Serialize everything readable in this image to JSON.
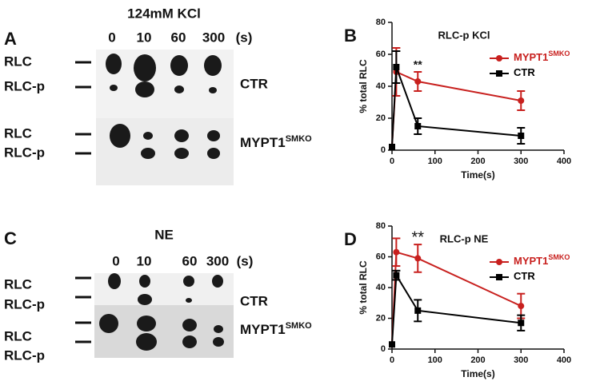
{
  "blots": [
    {
      "panel": "A",
      "title": "124mM KCl",
      "lanes": [
        "0",
        "10",
        "60",
        "300"
      ],
      "unit": "(s)",
      "rows": [
        {
          "labels": [
            "RLC",
            "RLC-p"
          ],
          "group": "CTR"
        },
        {
          "labels": [
            "RLC",
            "RLC-p"
          ],
          "group": "MYPT1",
          "group_sup": "SMKO"
        }
      ]
    },
    {
      "panel": "C",
      "title": "NE",
      "lanes": [
        "0",
        "10",
        "60",
        "300"
      ],
      "unit": "(s)",
      "rows": [
        {
          "labels": [
            "RLC",
            "RLC-p"
          ],
          "group": "CTR"
        },
        {
          "labels": [
            "RLC",
            "RLC-p"
          ],
          "group": "MYPT1",
          "group_sup": "SMKO"
        }
      ]
    }
  ],
  "chart_data": [
    {
      "type": "line",
      "panel": "B",
      "title": "RLC-p KCl",
      "x_label": "Time(s)",
      "y_label": "% total RLC",
      "x": [
        0,
        10,
        60,
        300
      ],
      "xlim": [
        0,
        400
      ],
      "xticks": [
        0,
        100,
        200,
        300,
        400
      ],
      "ylim": [
        0,
        80
      ],
      "yticks": [
        0,
        20,
        40,
        60,
        80
      ],
      "annotation": "**",
      "series": [
        {
          "name": "MYPT1",
          "name_sup": "SMKO",
          "color": "#c8201e",
          "marker": "circle",
          "values": [
            2,
            49,
            43,
            31
          ],
          "errors": [
            0,
            15,
            6,
            6
          ]
        },
        {
          "name": "CTR",
          "color": "#000000",
          "marker": "square",
          "values": [
            2,
            52,
            15,
            9
          ],
          "errors": [
            0,
            10,
            5,
            5
          ]
        }
      ]
    },
    {
      "type": "line",
      "panel": "D",
      "title": "RLC-p NE",
      "x_label": "Time(s)",
      "y_label": "% total RLC",
      "x": [
        0,
        10,
        60,
        300
      ],
      "xlim": [
        0,
        400
      ],
      "xticks": [
        0,
        100,
        200,
        300,
        400
      ],
      "ylim": [
        0,
        80
      ],
      "yticks": [
        0,
        20,
        40,
        60,
        80
      ],
      "annotation": "**",
      "series": [
        {
          "name": "MYPT1",
          "name_sup": "SMKO",
          "color": "#c8201e",
          "marker": "circle",
          "values": [
            3,
            63,
            59,
            28
          ],
          "errors": [
            0,
            9,
            9,
            8
          ]
        },
        {
          "name": "CTR",
          "color": "#000000",
          "marker": "square",
          "values": [
            3,
            48,
            25,
            17
          ],
          "errors": [
            0,
            3,
            7,
            5
          ]
        }
      ]
    }
  ]
}
